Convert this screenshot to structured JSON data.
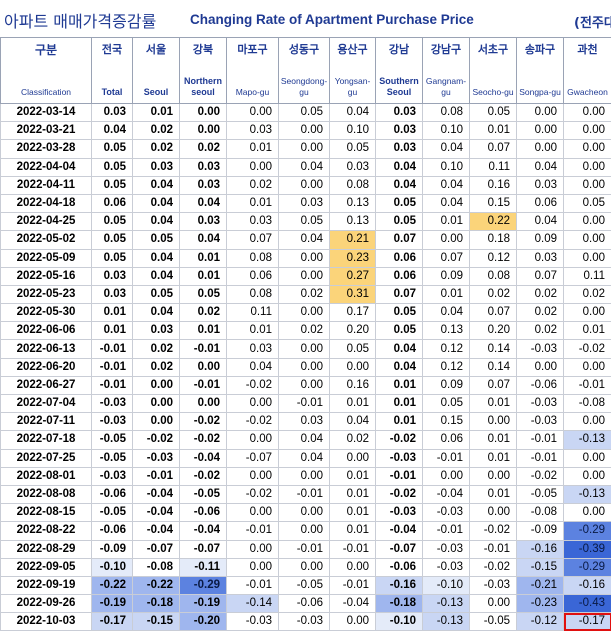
{
  "title": {
    "korean": "아파트 매매가격증감률",
    "english": "Changing Rate of Apartment Purchase Price",
    "unit": "(전주대"
  },
  "columns": [
    {
      "kr": "구분",
      "en": "Classification"
    },
    {
      "kr": "전국",
      "en": "Total"
    },
    {
      "kr": "서울",
      "en": "Seoul"
    },
    {
      "kr": "강북",
      "en": "Northern seoul"
    },
    {
      "kr": "마포구",
      "en": "Mapo-gu"
    },
    {
      "kr": "성동구",
      "en": "Seongdong-gu"
    },
    {
      "kr": "용산구",
      "en": "Yongsan-gu"
    },
    {
      "kr": "강남",
      "en": "Southern Seoul"
    },
    {
      "kr": "강남구",
      "en": "Gangnam-gu"
    },
    {
      "kr": "서초구",
      "en": "Seocho-gu"
    },
    {
      "kr": "송파구",
      "en": "Songpa-gu"
    },
    {
      "kr": "과천",
      "en": "Gwacheon"
    }
  ],
  "rows": [
    [
      "2022-03-14",
      "0.03",
      "0.01",
      "0.00",
      "0.00",
      "0.05",
      "0.04",
      "0.03",
      "0.08",
      "0.05",
      "0.00",
      "0.00"
    ],
    [
      "2022-03-21",
      "0.04",
      "0.02",
      "0.00",
      "0.03",
      "0.00",
      "0.10",
      "0.03",
      "0.10",
      "0.01",
      "0.00",
      "0.00"
    ],
    [
      "2022-03-28",
      "0.05",
      "0.02",
      "0.02",
      "0.01",
      "0.00",
      "0.05",
      "0.03",
      "0.04",
      "0.07",
      "0.00",
      "0.00"
    ],
    [
      "2022-04-04",
      "0.05",
      "0.03",
      "0.03",
      "0.00",
      "0.04",
      "0.03",
      "0.04",
      "0.10",
      "0.11",
      "0.04",
      "0.00"
    ],
    [
      "2022-04-11",
      "0.05",
      "0.04",
      "0.03",
      "0.02",
      "0.00",
      "0.08",
      "0.04",
      "0.04",
      "0.16",
      "0.03",
      "0.00"
    ],
    [
      "2022-04-18",
      "0.06",
      "0.04",
      "0.04",
      "0.01",
      "0.03",
      "0.13",
      "0.05",
      "0.04",
      "0.15",
      "0.06",
      "0.05"
    ],
    [
      "2022-04-25",
      "0.05",
      "0.04",
      "0.03",
      "0.03",
      "0.05",
      "0.13",
      "0.05",
      "0.01",
      "0.22",
      "0.04",
      "0.00"
    ],
    [
      "2022-05-02",
      "0.05",
      "0.05",
      "0.04",
      "0.07",
      "0.04",
      "0.21",
      "0.07",
      "0.00",
      "0.18",
      "0.09",
      "0.00"
    ],
    [
      "2022-05-09",
      "0.05",
      "0.04",
      "0.01",
      "0.08",
      "0.00",
      "0.23",
      "0.06",
      "0.07",
      "0.12",
      "0.03",
      "0.00"
    ],
    [
      "2022-05-16",
      "0.03",
      "0.04",
      "0.01",
      "0.06",
      "0.00",
      "0.27",
      "0.06",
      "0.09",
      "0.08",
      "0.07",
      "0.11"
    ],
    [
      "2022-05-23",
      "0.03",
      "0.05",
      "0.05",
      "0.08",
      "0.02",
      "0.31",
      "0.07",
      "0.01",
      "0.02",
      "0.02",
      "0.02"
    ],
    [
      "2022-05-30",
      "0.01",
      "0.04",
      "0.02",
      "0.11",
      "0.00",
      "0.17",
      "0.05",
      "0.04",
      "0.07",
      "0.02",
      "0.00"
    ],
    [
      "2022-06-06",
      "0.01",
      "0.03",
      "0.01",
      "0.01",
      "0.02",
      "0.20",
      "0.05",
      "0.13",
      "0.20",
      "0.02",
      "0.01"
    ],
    [
      "2022-06-13",
      "-0.01",
      "0.02",
      "-0.01",
      "0.03",
      "0.00",
      "0.05",
      "0.04",
      "0.12",
      "0.14",
      "-0.03",
      "-0.02"
    ],
    [
      "2022-06-20",
      "-0.01",
      "0.02",
      "0.00",
      "0.04",
      "0.00",
      "0.00",
      "0.04",
      "0.12",
      "0.14",
      "0.00",
      "0.00"
    ],
    [
      "2022-06-27",
      "-0.01",
      "0.00",
      "-0.01",
      "-0.02",
      "0.00",
      "0.16",
      "0.01",
      "0.09",
      "0.07",
      "-0.06",
      "-0.01"
    ],
    [
      "2022-07-04",
      "-0.03",
      "0.00",
      "0.00",
      "0.00",
      "-0.01",
      "0.01",
      "0.01",
      "0.05",
      "0.01",
      "-0.03",
      "-0.08"
    ],
    [
      "2022-07-11",
      "-0.03",
      "0.00",
      "-0.02",
      "-0.02",
      "0.03",
      "0.04",
      "0.01",
      "0.15",
      "0.00",
      "-0.03",
      "0.00"
    ],
    [
      "2022-07-18",
      "-0.05",
      "-0.02",
      "-0.02",
      "0.00",
      "0.04",
      "0.02",
      "-0.02",
      "0.06",
      "0.01",
      "-0.01",
      "-0.13"
    ],
    [
      "2022-07-25",
      "-0.05",
      "-0.03",
      "-0.04",
      "-0.07",
      "0.04",
      "0.00",
      "-0.03",
      "-0.01",
      "0.01",
      "-0.01",
      "0.00"
    ],
    [
      "2022-08-01",
      "-0.03",
      "-0.01",
      "-0.02",
      "0.00",
      "0.00",
      "0.01",
      "-0.01",
      "0.00",
      "0.00",
      "-0.02",
      "0.00"
    ],
    [
      "2022-08-08",
      "-0.06",
      "-0.04",
      "-0.05",
      "-0.02",
      "-0.01",
      "0.01",
      "-0.02",
      "-0.04",
      "0.01",
      "-0.05",
      "-0.13"
    ],
    [
      "2022-08-15",
      "-0.05",
      "-0.04",
      "-0.06",
      "0.00",
      "0.00",
      "0.01",
      "-0.03",
      "-0.03",
      "0.00",
      "-0.08",
      "0.00"
    ],
    [
      "2022-08-22",
      "-0.06",
      "-0.04",
      "-0.04",
      "-0.01",
      "0.00",
      "0.01",
      "-0.04",
      "-0.01",
      "-0.02",
      "-0.09",
      "-0.29"
    ],
    [
      "2022-08-29",
      "-0.09",
      "-0.07",
      "-0.07",
      "0.00",
      "-0.01",
      "-0.01",
      "-0.07",
      "-0.03",
      "-0.01",
      "-0.16",
      "-0.39"
    ],
    [
      "2022-09-05",
      "-0.10",
      "-0.08",
      "-0.11",
      "0.00",
      "0.00",
      "0.00",
      "-0.06",
      "-0.03",
      "-0.02",
      "-0.15",
      "-0.29"
    ],
    [
      "2022-09-19",
      "-0.22",
      "-0.22",
      "-0.29",
      "-0.01",
      "-0.05",
      "-0.01",
      "-0.16",
      "-0.10",
      "-0.03",
      "-0.21",
      "-0.16"
    ],
    [
      "2022-09-26",
      "-0.19",
      "-0.18",
      "-0.19",
      "-0.14",
      "-0.06",
      "-0.04",
      "-0.18",
      "-0.13",
      "0.00",
      "-0.23",
      "-0.43"
    ],
    [
      "2022-10-03",
      "-0.17",
      "-0.15",
      "-0.20",
      "-0.03",
      "-0.03",
      "0.00",
      "-0.10",
      "-0.13",
      "-0.05",
      "-0.12",
      "-0.17"
    ]
  ],
  "colors": {
    "header_text": "#1f3a93",
    "highlight_positive": "#fbd47a",
    "highlight_negative_light": "#e4ebf9",
    "highlight_negative_mid": "#9fb6ee",
    "highlight_negative_dark": "#3a66d6",
    "focus_outline": "#e01010"
  },
  "bold_columns": [
    1,
    2,
    3,
    7
  ],
  "positive_highlight_columns": [
    6,
    9
  ],
  "focus_cell": {
    "row": 28,
    "col": 11
  }
}
